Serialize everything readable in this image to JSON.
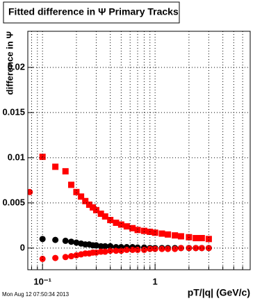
{
  "chart_data": {
    "type": "scatter",
    "title": "Fitted difference in Ψ   Primary Tracks",
    "y_label": "difference in Ψ",
    "x_label": "pT/|q| (GeV/c)",
    "timestamp": "Mon Aug 12 07:50:34 2013",
    "log_x": true,
    "grid": true,
    "xlim": [
      0.074,
      7.0
    ],
    "ylim": [
      -0.0024,
      0.024
    ],
    "xticks": [
      {
        "value": 0.1,
        "label": "10⁻¹"
      },
      1
    ],
    "x_minor_ticks": [
      0.08,
      0.09,
      0.2,
      0.3,
      0.4,
      0.5,
      0.6,
      0.7,
      0.8,
      0.9,
      2,
      3,
      4,
      5,
      6,
      7
    ],
    "yticks": [
      0,
      0.005,
      0.01,
      0.015,
      0.02
    ],
    "x": [
      0.077,
      0.1,
      0.13,
      0.16,
      0.18,
      0.2,
      0.22,
      0.24,
      0.26,
      0.28,
      0.3,
      0.33,
      0.36,
      0.4,
      0.45,
      0.5,
      0.56,
      0.63,
      0.7,
      0.8,
      0.9,
      1.0,
      1.15,
      1.3,
      1.5,
      1.7,
      2.0,
      2.3,
      2.6,
      3.0
    ],
    "series": [
      {
        "color": "#000000",
        "marker": "circle",
        "values": [
          null,
          0.001,
          0.0009,
          0.0008,
          0.0007,
          0.0006,
          0.0005,
          0.0004,
          0.0004,
          0.0003,
          0.0003,
          0.0002,
          0.0002,
          0.0002,
          0.0001,
          0.0001,
          0.0001,
          0.0001,
          5e-05,
          5e-05,
          0,
          0,
          0,
          0,
          0,
          0,
          0,
          0,
          0,
          0
        ]
      },
      {
        "color": "#ff0000",
        "marker": "square",
        "values": [
          null,
          0.0101,
          0.009,
          0.0085,
          0.007,
          0.0062,
          0.0057,
          0.0052,
          0.0048,
          0.0045,
          0.0042,
          0.0038,
          0.0035,
          0.0031,
          0.0028,
          0.0026,
          0.0024,
          0.0022,
          0.002,
          0.0019,
          0.0018,
          0.0017,
          0.0016,
          0.0015,
          0.0014,
          0.0013,
          0.0012,
          0.0011,
          0.0011,
          0.001
        ]
      },
      {
        "color": "#ff0000",
        "marker": "circle",
        "values": [
          0.0062,
          -0.0012,
          -0.0011,
          -0.001,
          -0.0009,
          -0.0008,
          -0.0007,
          -0.0006,
          -0.0006,
          -0.0005,
          -0.0005,
          -0.0004,
          -0.0004,
          -0.0003,
          -0.0003,
          -0.0003,
          -0.0002,
          -0.0002,
          -0.0002,
          -0.0002,
          -0.0001,
          -0.0001,
          -0.0001,
          -0.0001,
          -0.0001,
          0,
          0,
          0,
          0,
          0
        ]
      }
    ]
  }
}
